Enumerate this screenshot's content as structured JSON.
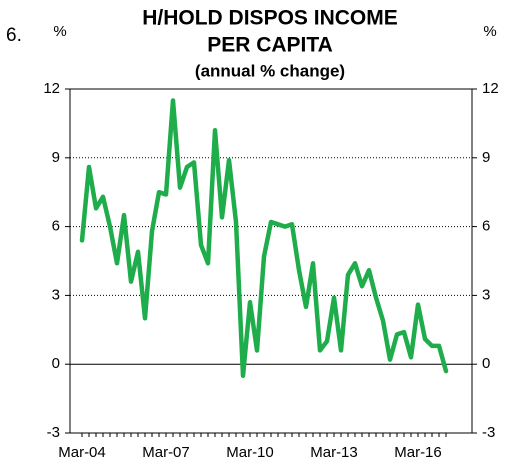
{
  "page_number": "6.",
  "chart_data": {
    "type": "line",
    "title": "H/HOLD DISPOS INCOME",
    "title_line2": "PER CAPITA",
    "subtitle": "(annual % change)",
    "y_label": "%",
    "y2_label": "%",
    "categories": [
      "Mar-04",
      null,
      null,
      null,
      null,
      null,
      null,
      null,
      null,
      null,
      null,
      null,
      "Mar-07",
      null,
      null,
      null,
      null,
      null,
      null,
      null,
      null,
      null,
      null,
      null,
      "Mar-10",
      null,
      null,
      null,
      null,
      null,
      null,
      null,
      null,
      null,
      null,
      null,
      "Mar-13",
      null,
      null,
      null,
      null,
      null,
      null,
      null,
      null,
      null,
      null,
      null,
      "Mar-16",
      null,
      null,
      null,
      null
    ],
    "series": [
      {
        "name": "H/hold dispos income per capita",
        "color": "#1fad4b",
        "values": [
          5.4,
          8.6,
          6.8,
          7.3,
          6.0,
          4.4,
          6.5,
          3.6,
          4.9,
          2.0,
          5.8,
          7.5,
          7.4,
          11.5,
          7.7,
          8.6,
          8.8,
          5.2,
          4.4,
          10.2,
          6.4,
          8.9,
          6.2,
          -0.5,
          2.7,
          0.6,
          4.7,
          6.2,
          6.1,
          6.0,
          6.1,
          4.1,
          2.5,
          4.4,
          0.6,
          1.0,
          2.9,
          0.6,
          3.9,
          4.4,
          3.4,
          4.1,
          2.9,
          1.9,
          0.2,
          1.3,
          1.4,
          0.3,
          2.6,
          1.1,
          0.8,
          0.8,
          -0.3
        ]
      }
    ],
    "ylim": [
      -3,
      12
    ],
    "yticks": [
      -3,
      0,
      3,
      6,
      9,
      12
    ],
    "y2lim": [
      -3,
      12
    ],
    "y2ticks": [
      -3,
      0,
      3,
      6,
      9,
      12
    ],
    "grid": true
  }
}
